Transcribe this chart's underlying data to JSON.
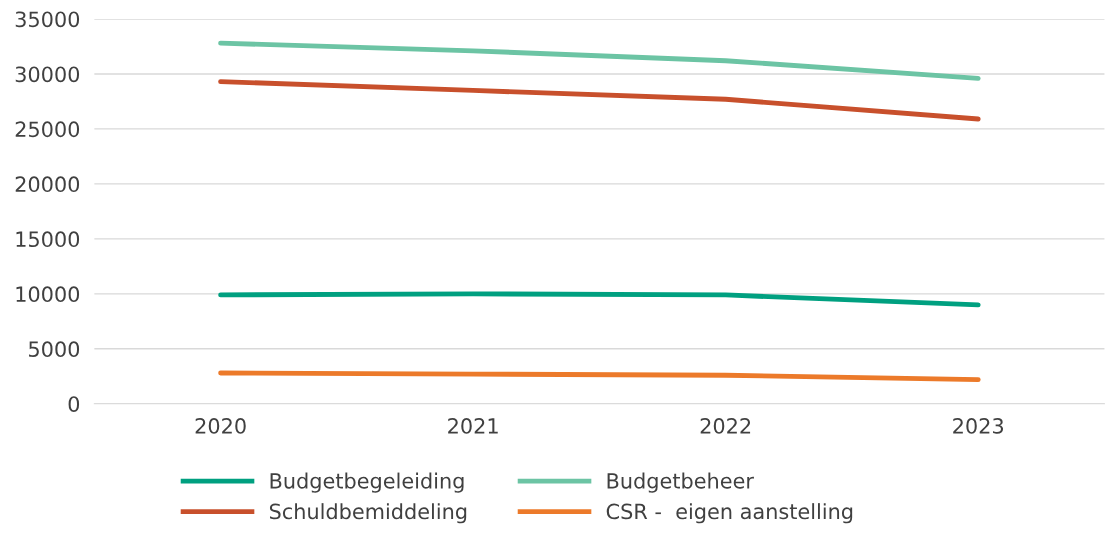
{
  "chart_data": {
    "type": "line",
    "categories": [
      "2020",
      "2021",
      "2022",
      "2023"
    ],
    "series": [
      {
        "name": "Budgetbegeleiding",
        "color": "#00a080",
        "values": [
          9900,
          10000,
          9900,
          9000
        ]
      },
      {
        "name": "Budgetbeheer",
        "color": "#6cc4a4",
        "values": [
          32800,
          32100,
          31200,
          29600
        ]
      },
      {
        "name": "Schuldbemiddeling",
        "color": "#c8502c",
        "values": [
          29300,
          28500,
          27700,
          25900
        ]
      },
      {
        "name": "CSR -  eigen aanstelling",
        "color": "#ec7a2a",
        "values": [
          2800,
          2700,
          2600,
          2200
        ]
      }
    ],
    "ylim": [
      0,
      35000
    ],
    "yticks": [
      0,
      5000,
      10000,
      15000,
      20000,
      25000,
      30000,
      35000
    ],
    "grid": "y",
    "legend": "bottom",
    "marker": "none",
    "line_style": "solid"
  }
}
